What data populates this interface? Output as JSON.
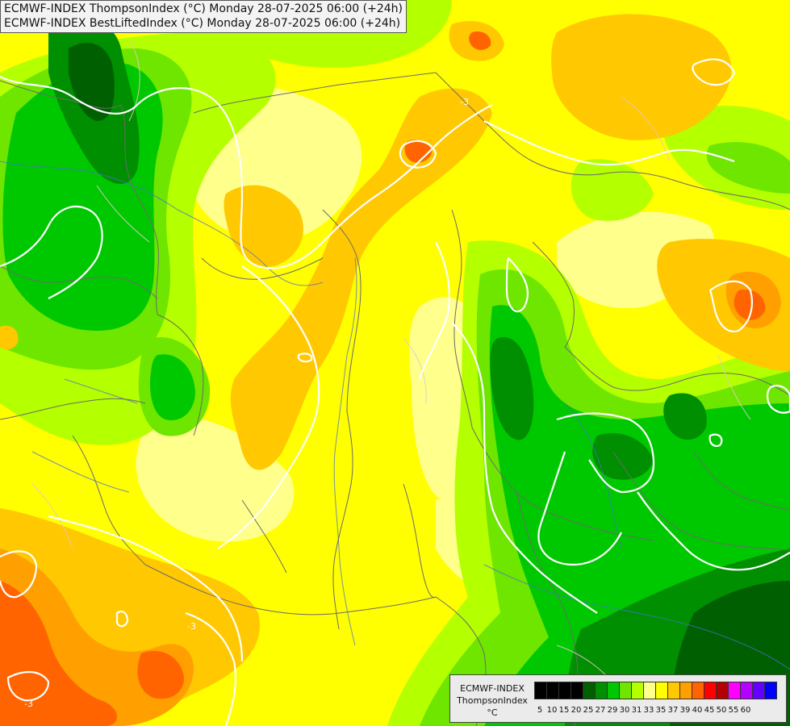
{
  "header": {
    "title_line_1": "ECMWF-INDEX ThompsonIndex (°C) Monday 28-07-2025 06:00 (+24h)",
    "title_line_2": "ECMWF-INDEX BestLiftedIndex (°C) Monday 28-07-2025 06:00 (+24h)"
  },
  "legend": {
    "title_1": "ECMWF-INDEX",
    "title_2": "ThompsonIndex",
    "unit": "°C",
    "bins": [
      {
        "label": "5",
        "color": "#000000"
      },
      {
        "label": "10",
        "color": "#000000"
      },
      {
        "label": "15",
        "color": "#000000"
      },
      {
        "label": "20",
        "color": "#000000"
      },
      {
        "label": "25",
        "color": "#005f00"
      },
      {
        "label": "27",
        "color": "#008f00"
      },
      {
        "label": "29",
        "color": "#00c800"
      },
      {
        "label": "30",
        "color": "#6ee600"
      },
      {
        "label": "31",
        "color": "#b4ff00"
      },
      {
        "label": "33",
        "color": "#ffff8c"
      },
      {
        "label": "35",
        "color": "#ffff00"
      },
      {
        "label": "37",
        "color": "#ffc800"
      },
      {
        "label": "39",
        "color": "#ffa000"
      },
      {
        "label": "40",
        "color": "#ff6400"
      },
      {
        "label": "45",
        "color": "#ff0000"
      },
      {
        "label": "50",
        "color": "#b40000"
      },
      {
        "label": "55",
        "color": "#ff00ff"
      },
      {
        "label": "60",
        "color": "#b400ff"
      },
      {
        "label": "",
        "color": "#6400ff"
      },
      {
        "label": "",
        "color": "#0000ff"
      }
    ]
  },
  "map": {
    "contour_labels": [
      "-3",
      "-3",
      "-3"
    ]
  },
  "colors": {
    "contour": "#ffffff",
    "borders": "#6b6b6b",
    "rivers": "#4a6fd0",
    "background": "#ffff00"
  }
}
